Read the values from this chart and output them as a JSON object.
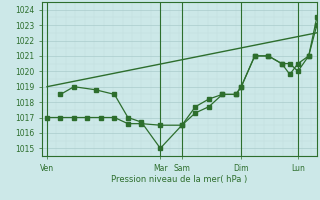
{
  "background_color": "#cce8e8",
  "grid_color_major": "#aacccc",
  "grid_color_minor": "#c0dede",
  "line_color": "#2d6e2d",
  "xlabel": "Pression niveau de la mer( hPa )",
  "ylim": [
    1014.5,
    1024.5
  ],
  "yticks": [
    1015,
    1016,
    1017,
    1018,
    1019,
    1020,
    1021,
    1022,
    1023,
    1024
  ],
  "day_labels": [
    "Ven",
    "Mar",
    "Sam",
    "Dim",
    "Lun"
  ],
  "day_positions": [
    0.0,
    0.42,
    0.5,
    0.72,
    0.93
  ],
  "xlim": [
    -0.02,
    1.0
  ],
  "line1_x": [
    0.0,
    0.05,
    0.1,
    0.15,
    0.2,
    0.25,
    0.3,
    0.35,
    0.42,
    0.5,
    0.55,
    0.6,
    0.65,
    0.7,
    0.72,
    0.77,
    0.82,
    0.87,
    0.9,
    0.93,
    0.97,
    1.0
  ],
  "line1_y": [
    1017.0,
    1017.0,
    1017.0,
    1017.0,
    1017.0,
    1017.0,
    1016.6,
    1016.6,
    1016.5,
    1016.5,
    1017.7,
    1018.2,
    1018.5,
    1018.5,
    1019.0,
    1021.0,
    1021.0,
    1020.5,
    1020.5,
    1020.0,
    1021.0,
    1023.0
  ],
  "line2_x": [
    0.05,
    0.1,
    0.18,
    0.25,
    0.3,
    0.35,
    0.42,
    0.5,
    0.55,
    0.6,
    0.65,
    0.7,
    0.72,
    0.77,
    0.82,
    0.87,
    0.9,
    0.93,
    0.97,
    1.0
  ],
  "line2_y": [
    1018.5,
    1019.0,
    1018.8,
    1018.5,
    1017.0,
    1016.7,
    1015.0,
    1016.5,
    1017.3,
    1017.7,
    1018.5,
    1018.5,
    1019.0,
    1021.0,
    1021.0,
    1020.5,
    1019.8,
    1020.5,
    1021.0,
    1023.5
  ],
  "line3_x": [
    0.0,
    1.0
  ],
  "line3_y": [
    1019.0,
    1022.5
  ],
  "vline_positions": [
    0.0,
    0.42,
    0.5,
    0.72,
    0.93
  ]
}
